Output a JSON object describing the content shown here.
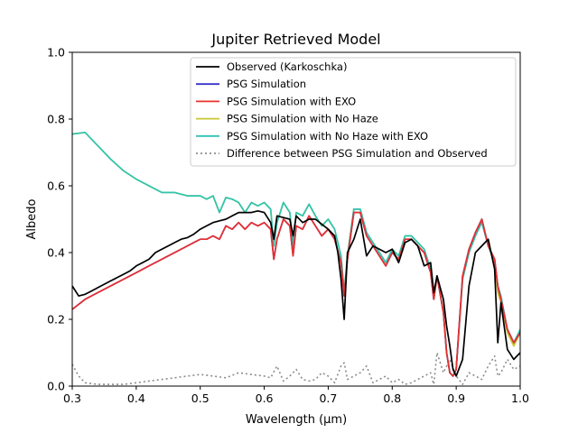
{
  "chart_data": {
    "type": "line",
    "title": "Jupiter Retrieved Model",
    "xlabel": "Wavelength (μm)",
    "ylabel": "Albedo",
    "xlim": [
      0.3,
      1.0
    ],
    "ylim": [
      0.0,
      1.0
    ],
    "x_ticks": [
      "0.3",
      "0.4",
      "0.5",
      "0.6",
      "0.7",
      "0.8",
      "0.9",
      "1.0"
    ],
    "y_ticks": [
      "0.0",
      "0.2",
      "0.4",
      "0.6",
      "0.8",
      "1.0"
    ],
    "grid": false,
    "legend_position": "upper-right",
    "series": [
      {
        "name": "Observed (Karkoschka)",
        "color": "#000000",
        "style": "solid",
        "x": [
          0.3,
          0.31,
          0.32,
          0.33,
          0.34,
          0.35,
          0.36,
          0.37,
          0.38,
          0.39,
          0.4,
          0.41,
          0.42,
          0.43,
          0.44,
          0.45,
          0.46,
          0.47,
          0.48,
          0.49,
          0.5,
          0.51,
          0.52,
          0.53,
          0.54,
          0.55,
          0.56,
          0.57,
          0.58,
          0.59,
          0.6,
          0.61,
          0.615,
          0.62,
          0.63,
          0.64,
          0.645,
          0.65,
          0.66,
          0.67,
          0.68,
          0.69,
          0.7,
          0.71,
          0.715,
          0.72,
          0.725,
          0.73,
          0.74,
          0.75,
          0.76,
          0.77,
          0.78,
          0.79,
          0.8,
          0.81,
          0.82,
          0.83,
          0.84,
          0.85,
          0.86,
          0.865,
          0.87,
          0.88,
          0.885,
          0.89,
          0.895,
          0.9,
          0.91,
          0.92,
          0.93,
          0.94,
          0.95,
          0.96,
          0.965,
          0.97,
          0.98,
          0.99,
          1.0
        ],
        "y": [
          0.3,
          0.27,
          0.275,
          0.285,
          0.295,
          0.305,
          0.315,
          0.325,
          0.335,
          0.345,
          0.36,
          0.37,
          0.38,
          0.4,
          0.41,
          0.42,
          0.43,
          0.44,
          0.445,
          0.455,
          0.47,
          0.48,
          0.49,
          0.495,
          0.5,
          0.51,
          0.52,
          0.52,
          0.52,
          0.525,
          0.52,
          0.49,
          0.44,
          0.51,
          0.505,
          0.5,
          0.45,
          0.51,
          0.49,
          0.5,
          0.5,
          0.485,
          0.47,
          0.45,
          0.4,
          0.32,
          0.2,
          0.4,
          0.44,
          0.5,
          0.39,
          0.42,
          0.41,
          0.4,
          0.41,
          0.37,
          0.43,
          0.44,
          0.42,
          0.36,
          0.37,
          0.28,
          0.33,
          0.26,
          0.18,
          0.12,
          0.05,
          0.03,
          0.08,
          0.3,
          0.4,
          0.42,
          0.44,
          0.35,
          0.13,
          0.25,
          0.11,
          0.08,
          0.1
        ]
      },
      {
        "name": "PSG Simulation",
        "color": "#3535c8",
        "style": "solid",
        "x": [
          0.3,
          0.32,
          0.34,
          0.36,
          0.38,
          0.4,
          0.42,
          0.44,
          0.46,
          0.48,
          0.49,
          0.5,
          0.51,
          0.52,
          0.53,
          0.54,
          0.55,
          0.56,
          0.57,
          0.58,
          0.59,
          0.6,
          0.61,
          0.615,
          0.62,
          0.63,
          0.64,
          0.645,
          0.65,
          0.66,
          0.67,
          0.68,
          0.69,
          0.7,
          0.71,
          0.72,
          0.725,
          0.73,
          0.74,
          0.75,
          0.76,
          0.77,
          0.78,
          0.79,
          0.8,
          0.81,
          0.82,
          0.83,
          0.84,
          0.85,
          0.86,
          0.865,
          0.87,
          0.88,
          0.885,
          0.89,
          0.895,
          0.9,
          0.91,
          0.92,
          0.93,
          0.94,
          0.95,
          0.96,
          0.965,
          0.97,
          0.98,
          0.99,
          1.0
        ],
        "y": [
          0.23,
          0.26,
          0.28,
          0.3,
          0.32,
          0.34,
          0.36,
          0.38,
          0.4,
          0.42,
          0.43,
          0.44,
          0.44,
          0.45,
          0.44,
          0.48,
          0.47,
          0.49,
          0.47,
          0.49,
          0.48,
          0.49,
          0.47,
          0.38,
          0.44,
          0.5,
          0.48,
          0.39,
          0.48,
          0.47,
          0.51,
          0.48,
          0.45,
          0.47,
          0.44,
          0.37,
          0.27,
          0.38,
          0.52,
          0.52,
          0.45,
          0.42,
          0.39,
          0.36,
          0.4,
          0.38,
          0.44,
          0.44,
          0.42,
          0.4,
          0.34,
          0.26,
          0.33,
          0.22,
          0.1,
          0.04,
          0.03,
          0.05,
          0.33,
          0.41,
          0.46,
          0.5,
          0.42,
          0.38,
          0.3,
          0.26,
          0.17,
          0.13,
          0.16
        ]
      },
      {
        "name": "PSG Simulation with EXO",
        "color": "#e8302e",
        "style": "solid",
        "x": [
          0.3,
          0.32,
          0.34,
          0.36,
          0.38,
          0.4,
          0.42,
          0.44,
          0.46,
          0.48,
          0.49,
          0.5,
          0.51,
          0.52,
          0.53,
          0.54,
          0.55,
          0.56,
          0.57,
          0.58,
          0.59,
          0.6,
          0.61,
          0.615,
          0.62,
          0.63,
          0.64,
          0.645,
          0.65,
          0.66,
          0.67,
          0.68,
          0.69,
          0.7,
          0.71,
          0.72,
          0.725,
          0.73,
          0.74,
          0.75,
          0.76,
          0.77,
          0.78,
          0.79,
          0.8,
          0.81,
          0.82,
          0.83,
          0.84,
          0.85,
          0.86,
          0.865,
          0.87,
          0.88,
          0.885,
          0.89,
          0.895,
          0.9,
          0.91,
          0.92,
          0.93,
          0.94,
          0.95,
          0.96,
          0.965,
          0.97,
          0.98,
          0.99,
          1.0
        ],
        "y": [
          0.23,
          0.26,
          0.28,
          0.3,
          0.32,
          0.34,
          0.36,
          0.38,
          0.4,
          0.42,
          0.43,
          0.44,
          0.44,
          0.45,
          0.44,
          0.48,
          0.47,
          0.49,
          0.47,
          0.49,
          0.48,
          0.49,
          0.47,
          0.38,
          0.44,
          0.5,
          0.48,
          0.39,
          0.48,
          0.47,
          0.51,
          0.48,
          0.45,
          0.47,
          0.44,
          0.37,
          0.27,
          0.38,
          0.52,
          0.52,
          0.45,
          0.42,
          0.39,
          0.36,
          0.4,
          0.38,
          0.44,
          0.44,
          0.42,
          0.4,
          0.34,
          0.26,
          0.33,
          0.22,
          0.1,
          0.04,
          0.03,
          0.05,
          0.33,
          0.41,
          0.46,
          0.5,
          0.42,
          0.38,
          0.3,
          0.26,
          0.17,
          0.13,
          0.16
        ]
      },
      {
        "name": "PSG Simulation with No Haze",
        "color": "#c8c832",
        "style": "solid",
        "x": [
          0.3,
          0.32,
          0.34,
          0.36,
          0.38,
          0.4,
          0.42,
          0.44,
          0.46,
          0.48,
          0.49,
          0.5,
          0.51,
          0.52,
          0.53,
          0.54,
          0.55,
          0.56,
          0.57,
          0.58,
          0.59,
          0.6,
          0.61,
          0.615,
          0.62,
          0.63,
          0.64,
          0.645,
          0.65,
          0.66,
          0.67,
          0.68,
          0.69,
          0.7,
          0.71,
          0.72,
          0.725,
          0.73,
          0.74,
          0.75,
          0.76,
          0.77,
          0.78,
          0.79,
          0.8,
          0.81,
          0.82,
          0.83,
          0.84,
          0.85,
          0.86,
          0.865,
          0.87,
          0.88,
          0.885,
          0.89,
          0.895,
          0.9,
          0.91,
          0.92,
          0.93,
          0.94,
          0.95,
          0.96,
          0.965,
          0.97,
          0.98,
          0.99,
          1.0
        ],
        "y": [
          0.755,
          0.76,
          0.72,
          0.68,
          0.645,
          0.62,
          0.6,
          0.58,
          0.58,
          0.57,
          0.57,
          0.57,
          0.56,
          0.57,
          0.52,
          0.565,
          0.56,
          0.55,
          0.52,
          0.55,
          0.54,
          0.55,
          0.53,
          0.42,
          0.49,
          0.55,
          0.52,
          0.42,
          0.52,
          0.51,
          0.545,
          0.51,
          0.48,
          0.5,
          0.47,
          0.39,
          0.28,
          0.39,
          0.53,
          0.53,
          0.46,
          0.43,
          0.4,
          0.37,
          0.41,
          0.39,
          0.45,
          0.45,
          0.43,
          0.41,
          0.35,
          0.26,
          0.33,
          0.22,
          0.1,
          0.04,
          0.03,
          0.05,
          0.32,
          0.4,
          0.45,
          0.5,
          0.42,
          0.37,
          0.28,
          0.25,
          0.16,
          0.12,
          0.16
        ]
      },
      {
        "name": "PSG Simulation with No Haze with EXO",
        "color": "#2ec4b2",
        "style": "solid",
        "x": [
          0.3,
          0.32,
          0.34,
          0.36,
          0.38,
          0.4,
          0.42,
          0.44,
          0.46,
          0.48,
          0.49,
          0.5,
          0.51,
          0.52,
          0.53,
          0.54,
          0.55,
          0.56,
          0.57,
          0.58,
          0.59,
          0.6,
          0.61,
          0.615,
          0.62,
          0.63,
          0.64,
          0.645,
          0.65,
          0.66,
          0.67,
          0.68,
          0.69,
          0.7,
          0.71,
          0.72,
          0.725,
          0.73,
          0.74,
          0.75,
          0.76,
          0.77,
          0.78,
          0.79,
          0.8,
          0.81,
          0.82,
          0.83,
          0.84,
          0.85,
          0.86,
          0.865,
          0.87,
          0.88,
          0.885,
          0.89,
          0.895,
          0.9,
          0.91,
          0.92,
          0.93,
          0.94,
          0.95,
          0.96,
          0.965,
          0.97,
          0.98,
          0.99,
          1.0
        ],
        "y": [
          0.755,
          0.76,
          0.72,
          0.68,
          0.645,
          0.62,
          0.6,
          0.58,
          0.58,
          0.57,
          0.57,
          0.57,
          0.56,
          0.57,
          0.52,
          0.565,
          0.56,
          0.55,
          0.52,
          0.55,
          0.54,
          0.55,
          0.53,
          0.42,
          0.49,
          0.55,
          0.52,
          0.42,
          0.52,
          0.51,
          0.545,
          0.51,
          0.48,
          0.5,
          0.47,
          0.39,
          0.28,
          0.39,
          0.53,
          0.53,
          0.46,
          0.43,
          0.4,
          0.37,
          0.41,
          0.39,
          0.45,
          0.45,
          0.43,
          0.41,
          0.35,
          0.26,
          0.33,
          0.22,
          0.1,
          0.04,
          0.03,
          0.05,
          0.32,
          0.4,
          0.45,
          0.49,
          0.42,
          0.37,
          0.3,
          0.27,
          0.17,
          0.13,
          0.17
        ]
      },
      {
        "name": "Difference between PSG Simulation and Observed",
        "color": "#8c8c8c",
        "style": "dotted",
        "x": [
          0.3,
          0.31,
          0.32,
          0.34,
          0.36,
          0.38,
          0.4,
          0.42,
          0.44,
          0.46,
          0.48,
          0.5,
          0.52,
          0.54,
          0.56,
          0.58,
          0.6,
          0.61,
          0.62,
          0.63,
          0.64,
          0.65,
          0.66,
          0.67,
          0.68,
          0.69,
          0.7,
          0.71,
          0.72,
          0.725,
          0.73,
          0.74,
          0.75,
          0.76,
          0.77,
          0.78,
          0.79,
          0.8,
          0.81,
          0.82,
          0.83,
          0.84,
          0.85,
          0.86,
          0.865,
          0.87,
          0.88,
          0.89,
          0.9,
          0.91,
          0.92,
          0.93,
          0.94,
          0.95,
          0.96,
          0.965,
          0.97,
          0.98,
          0.99,
          1.0
        ],
        "y": [
          0.065,
          0.03,
          0.01,
          0.005,
          0.005,
          0.005,
          0.01,
          0.015,
          0.02,
          0.025,
          0.03,
          0.035,
          0.03,
          0.025,
          0.04,
          0.035,
          0.03,
          0.025,
          0.06,
          0.015,
          0.03,
          0.05,
          0.02,
          0.015,
          0.02,
          0.04,
          0.03,
          0.01,
          0.06,
          0.07,
          0.02,
          0.03,
          0.04,
          0.06,
          0.01,
          0.02,
          0.03,
          0.01,
          0.02,
          0.005,
          0.01,
          0.02,
          0.03,
          0.04,
          0.005,
          0.1,
          0.04,
          0.08,
          0.03,
          0.005,
          0.04,
          0.03,
          0.02,
          0.06,
          0.09,
          0.03,
          0.04,
          0.08,
          0.05,
          0.06
        ]
      }
    ]
  }
}
